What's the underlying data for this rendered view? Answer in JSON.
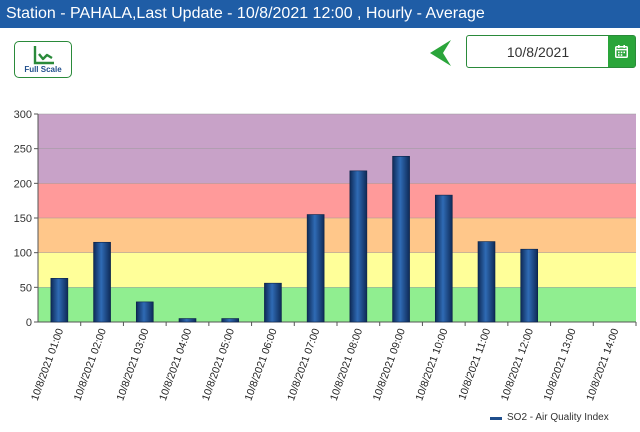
{
  "header": {
    "title": "Station - PAHALA,Last Update - 10/8/2021 12:00 , Hourly - Average"
  },
  "toolbar": {
    "full_scale_label": "Full Scale",
    "full_scale_icon": "line-chart-icon",
    "prev_icon": "arrow-left-icon",
    "date_value": "10/8/2021",
    "calendar_icon": "calendar-icon"
  },
  "colors": {
    "title_bar": "#1f5da6",
    "accent_green": "#2aa53a",
    "bar": "#1f4e8c"
  },
  "chart_data": {
    "type": "bar",
    "categories": [
      "10/8/2021 01:00",
      "10/8/2021 02:00",
      "10/8/2021 03:00",
      "10/8/2021 04:00",
      "10/8/2021 05:00",
      "10/8/2021 06:00",
      "10/8/2021 07:00",
      "10/8/2021 08:00",
      "10/8/2021 09:00",
      "10/8/2021 10:00",
      "10/8/2021 11:00",
      "10/8/2021 12:00",
      "10/8/2021 13:00",
      "10/8/2021 14:00"
    ],
    "series": [
      {
        "name": "SO2 - Air Quality Index",
        "values": [
          63,
          115,
          29,
          5,
          5,
          56,
          155,
          218,
          239,
          183,
          116,
          105,
          null,
          null
        ],
        "color": "#1f4e8c"
      }
    ],
    "ylim": [
      0,
      300
    ],
    "yticks": [
      0,
      50,
      100,
      150,
      200,
      250,
      300
    ],
    "bands": [
      {
        "from": 0,
        "to": 50,
        "color": "#90ee90"
      },
      {
        "from": 50,
        "to": 100,
        "color": "#ffff99"
      },
      {
        "from": 100,
        "to": 150,
        "color": "#ffc78a"
      },
      {
        "from": 150,
        "to": 200,
        "color": "#ff9a9a"
      },
      {
        "from": 200,
        "to": 300,
        "color": "#c8a2c8"
      }
    ],
    "legend": "bottom-right",
    "xlabel": "",
    "ylabel": ""
  }
}
